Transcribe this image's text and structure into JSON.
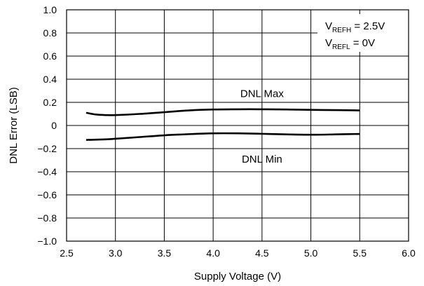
{
  "chart_data": {
    "type": "line",
    "xlabel": "Supply Voltage (V)",
    "ylabel": "DNL Error (LSB)",
    "xlim": [
      2.5,
      6.0
    ],
    "ylim": [
      -1.0,
      1.0
    ],
    "x_ticks": [
      2.5,
      3.0,
      3.5,
      4.0,
      4.5,
      5.0,
      5.5,
      6.0
    ],
    "y_ticks": [
      1.0,
      0.8,
      0.6,
      0.4,
      0.2,
      0,
      -0.2,
      -0.4,
      -0.6,
      -0.8,
      -1.0
    ],
    "x_tick_labels": [
      "2.5",
      "3.0",
      "3.5",
      "4.0",
      "4.5",
      "5.0",
      "5.5",
      "6.0"
    ],
    "y_tick_labels": [
      "1.0",
      "0.8",
      "0.6",
      "0.4",
      "0.2",
      "0",
      "−0.2",
      "−0.4",
      "−0.6",
      "−0.8",
      "−1.0"
    ],
    "grid": true,
    "series": [
      {
        "name": "DNL Max",
        "x": [
          2.7,
          2.8,
          2.9,
          3.0,
          3.25,
          3.5,
          3.75,
          4.0,
          4.25,
          4.5,
          4.75,
          5.0,
          5.25,
          5.5
        ],
        "y": [
          0.11,
          0.095,
          0.09,
          0.09,
          0.1,
          0.115,
          0.13,
          0.138,
          0.14,
          0.14,
          0.138,
          0.135,
          0.133,
          0.13
        ]
      },
      {
        "name": "DNL Min",
        "x": [
          2.7,
          2.9,
          3.0,
          3.25,
          3.5,
          3.75,
          4.0,
          4.25,
          4.5,
          4.75,
          5.0,
          5.25,
          5.5
        ],
        "y": [
          -0.125,
          -0.12,
          -0.115,
          -0.1,
          -0.085,
          -0.075,
          -0.068,
          -0.068,
          -0.072,
          -0.077,
          -0.08,
          -0.077,
          -0.073
        ]
      }
    ],
    "series_labels": [
      {
        "text": "DNL Max",
        "x": 4.5,
        "y": 0.275
      },
      {
        "text": "DNL Min",
        "x": 4.5,
        "y": -0.29
      }
    ],
    "legend": {
      "placement": "top-right",
      "lines": [
        {
          "main": "V",
          "sub": "REFH",
          "rest": " = 2.5V"
        },
        {
          "main": "V",
          "sub": "REFL",
          "rest": " = 0V"
        }
      ]
    }
  }
}
